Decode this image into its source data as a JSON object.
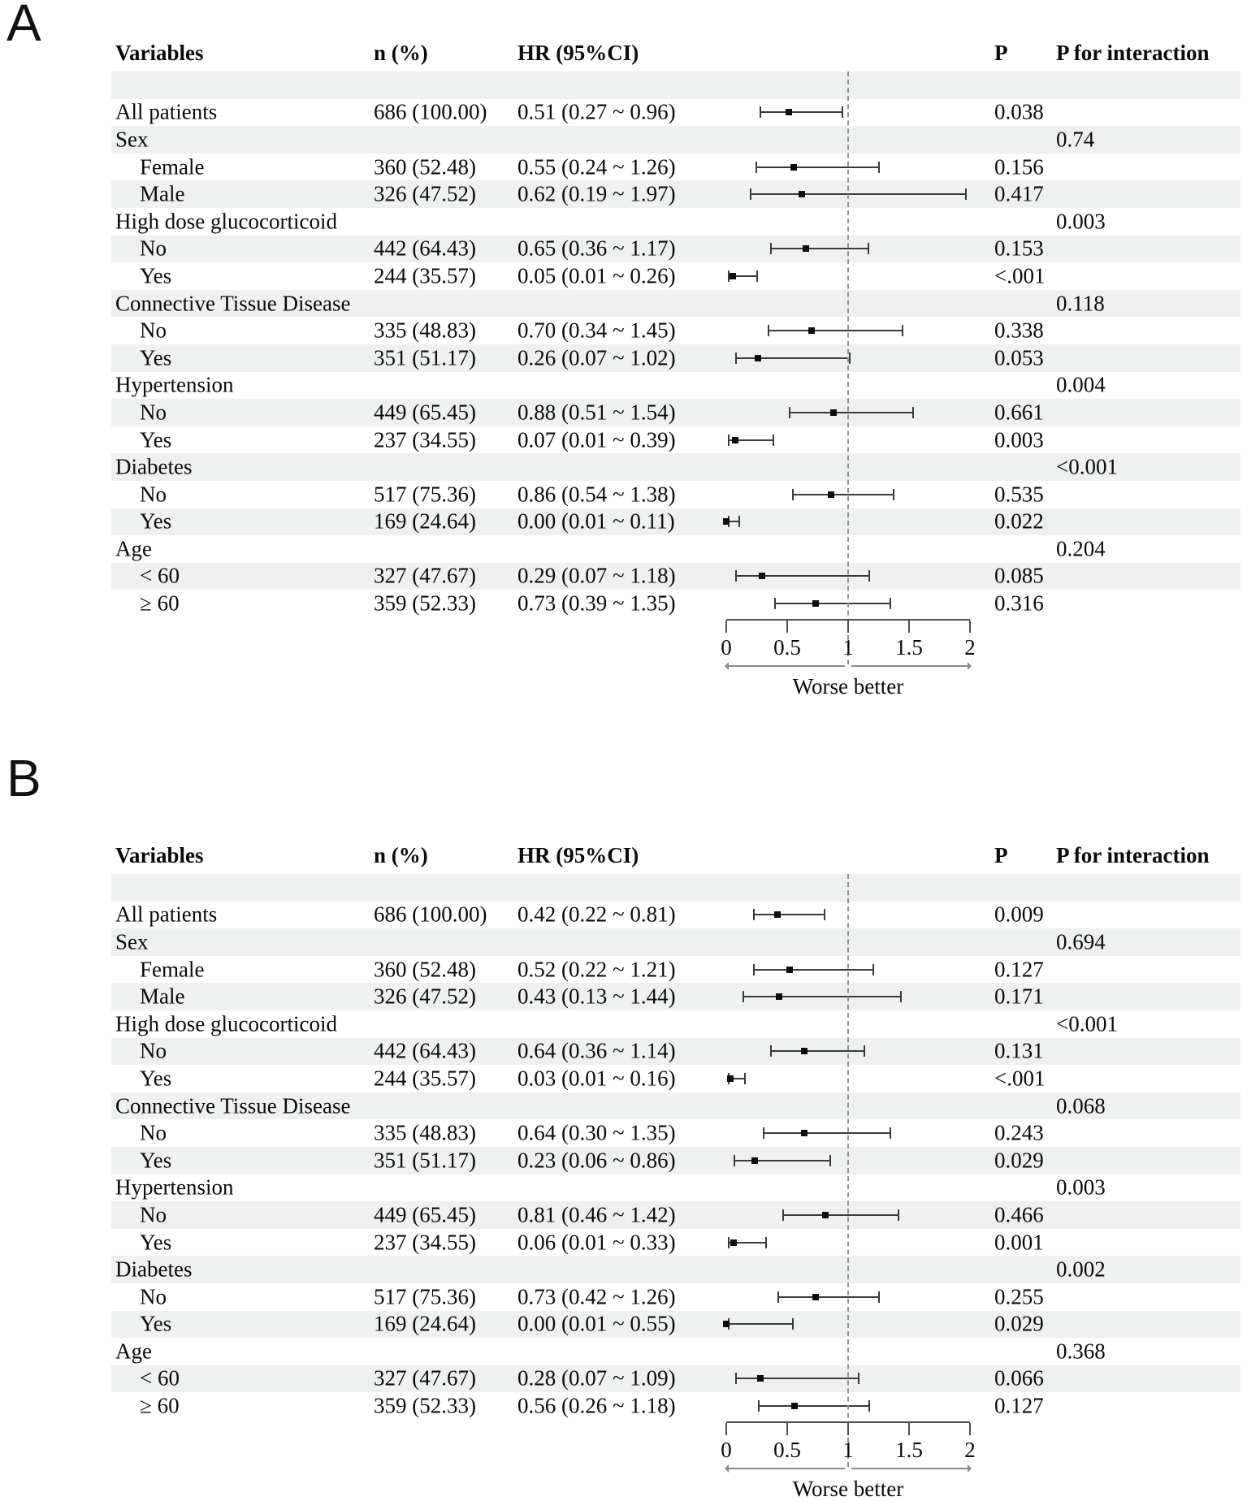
{
  "colors": {
    "stripe": "#eef1f0",
    "text": "#0a0a0a",
    "marker": "#0d0d0d",
    "ci_line": "#3a3a3a",
    "reference_dash": "#8f8f8f",
    "axis": "#4d4d4d"
  },
  "chart_data": [
    {
      "type": "forest",
      "panel": "A",
      "columns": {
        "variables": "Variables",
        "n": "n (%)",
        "hr": "HR (95%CI)",
        "p": "P",
        "p_interaction": "P for interaction"
      },
      "axis": {
        "min": 0,
        "max": 2,
        "ticks": [
          0,
          0.5,
          1,
          1.5,
          2
        ],
        "tick_labels": [
          "0",
          "0.5",
          "1",
          "1.5",
          "2"
        ],
        "reference_line": 1,
        "direction_label": "Worse better"
      },
      "rows": [
        {
          "kind": "spacer"
        },
        {
          "kind": "data",
          "label": "All patients",
          "indent": 0,
          "n": "686 (100.00)",
          "hr_text": "0.51 (0.27 ~ 0.96)",
          "hr": 0.51,
          "ci": [
            0.27,
            0.96
          ],
          "p": "0.038"
        },
        {
          "kind": "group",
          "label": "Sex",
          "p_interaction": "0.74"
        },
        {
          "kind": "data",
          "label": "Female",
          "indent": 1,
          "n": "360 (52.48)",
          "hr_text": "0.55 (0.24 ~ 1.26)",
          "hr": 0.55,
          "ci": [
            0.24,
            1.26
          ],
          "p": "0.156"
        },
        {
          "kind": "data",
          "label": "Male",
          "indent": 1,
          "n": "326 (47.52)",
          "hr_text": "0.62 (0.19 ~ 1.97)",
          "hr": 0.62,
          "ci": [
            0.19,
            1.97
          ],
          "p": "0.417"
        },
        {
          "kind": "group",
          "label": "High dose glucocorticoid",
          "p_interaction": "0.003"
        },
        {
          "kind": "data",
          "label": "No",
          "indent": 1,
          "n": "442 (64.43)",
          "hr_text": "0.65 (0.36 ~ 1.17)",
          "hr": 0.65,
          "ci": [
            0.36,
            1.17
          ],
          "p": "0.153"
        },
        {
          "kind": "data",
          "label": "Yes",
          "indent": 1,
          "n": "244 (35.57)",
          "hr_text": "0.05 (0.01 ~ 0.26)",
          "hr": 0.05,
          "ci": [
            0.01,
            0.26
          ],
          "p": "<.001"
        },
        {
          "kind": "group",
          "label": "Connective Tissue Disease",
          "p_interaction": "0.118"
        },
        {
          "kind": "data",
          "label": "No",
          "indent": 1,
          "n": "335 (48.83)",
          "hr_text": "0.70 (0.34 ~ 1.45)",
          "hr": 0.7,
          "ci": [
            0.34,
            1.45
          ],
          "p": "0.338"
        },
        {
          "kind": "data",
          "label": "Yes",
          "indent": 1,
          "n": "351 (51.17)",
          "hr_text": "0.26 (0.07 ~ 1.02)",
          "hr": 0.26,
          "ci": [
            0.07,
            1.02
          ],
          "p": "0.053"
        },
        {
          "kind": "group",
          "label": "Hypertension",
          "p_interaction": "0.004"
        },
        {
          "kind": "data",
          "label": "No",
          "indent": 1,
          "n": "449 (65.45)",
          "hr_text": "0.88 (0.51 ~ 1.54)",
          "hr": 0.88,
          "ci": [
            0.51,
            1.54
          ],
          "p": "0.661"
        },
        {
          "kind": "data",
          "label": "Yes",
          "indent": 1,
          "n": "237 (34.55)",
          "hr_text": "0.07 (0.01 ~ 0.39)",
          "hr": 0.07,
          "ci": [
            0.01,
            0.39
          ],
          "p": "0.003"
        },
        {
          "kind": "group",
          "label": "Diabetes",
          "p_interaction": "<0.001"
        },
        {
          "kind": "data",
          "label": "No",
          "indent": 1,
          "n": "517 (75.36)",
          "hr_text": "0.86 (0.54 ~ 1.38)",
          "hr": 0.86,
          "ci": [
            0.54,
            1.38
          ],
          "p": "0.535"
        },
        {
          "kind": "data",
          "label": "Yes",
          "indent": 1,
          "n": "169 (24.64)",
          "hr_text": "0.00 (0.01 ~ 0.11)",
          "hr": 0.0,
          "ci": [
            0.01,
            0.11
          ],
          "p": "0.022"
        },
        {
          "kind": "group",
          "label": "Age",
          "p_interaction": "0.204"
        },
        {
          "kind": "data",
          "label": "< 60",
          "indent": 1,
          "n": "327 (47.67)",
          "hr_text": "0.29 (0.07 ~ 1.18)",
          "hr": 0.29,
          "ci": [
            0.07,
            1.18
          ],
          "p": "0.085"
        },
        {
          "kind": "data",
          "label": "≥ 60",
          "indent": 1,
          "n": "359 (52.33)",
          "hr_text": "0.73 (0.39 ~ 1.35)",
          "hr": 0.73,
          "ci": [
            0.39,
            1.35
          ],
          "p": "0.316"
        }
      ]
    },
    {
      "type": "forest",
      "panel": "B",
      "columns": {
        "variables": "Variables",
        "n": "n (%)",
        "hr": "HR (95%CI)",
        "p": "P",
        "p_interaction": "P for interaction"
      },
      "axis": {
        "min": 0,
        "max": 2,
        "ticks": [
          0,
          0.5,
          1,
          1.5,
          2
        ],
        "tick_labels": [
          "0",
          "0.5",
          "1",
          "1.5",
          "2"
        ],
        "reference_line": 1,
        "direction_label": "Worse better"
      },
      "rows": [
        {
          "kind": "spacer"
        },
        {
          "kind": "data",
          "label": "All patients",
          "indent": 0,
          "n": "686 (100.00)",
          "hr_text": "0.42 (0.22 ~ 0.81)",
          "hr": 0.42,
          "ci": [
            0.22,
            0.81
          ],
          "p": "0.009"
        },
        {
          "kind": "group",
          "label": "Sex",
          "p_interaction": "0.694"
        },
        {
          "kind": "data",
          "label": "Female",
          "indent": 1,
          "n": "360 (52.48)",
          "hr_text": "0.52 (0.22 ~ 1.21)",
          "hr": 0.52,
          "ci": [
            0.22,
            1.21
          ],
          "p": "0.127"
        },
        {
          "kind": "data",
          "label": "Male",
          "indent": 1,
          "n": "326 (47.52)",
          "hr_text": "0.43 (0.13 ~ 1.44)",
          "hr": 0.43,
          "ci": [
            0.13,
            1.44
          ],
          "p": "0.171"
        },
        {
          "kind": "group",
          "label": "High dose glucocorticoid",
          "p_interaction": "<0.001"
        },
        {
          "kind": "data",
          "label": "No",
          "indent": 1,
          "n": "442 (64.43)",
          "hr_text": "0.64 (0.36 ~ 1.14)",
          "hr": 0.64,
          "ci": [
            0.36,
            1.14
          ],
          "p": "0.131"
        },
        {
          "kind": "data",
          "label": "Yes",
          "indent": 1,
          "n": "244 (35.57)",
          "hr_text": "0.03 (0.01 ~ 0.16)",
          "hr": 0.03,
          "ci": [
            0.01,
            0.16
          ],
          "p": "<.001"
        },
        {
          "kind": "group",
          "label": "Connective Tissue Disease",
          "p_interaction": "0.068"
        },
        {
          "kind": "data",
          "label": "No",
          "indent": 1,
          "n": "335 (48.83)",
          "hr_text": "0.64 (0.30 ~ 1.35)",
          "hr": 0.64,
          "ci": [
            0.3,
            1.35
          ],
          "p": "0.243"
        },
        {
          "kind": "data",
          "label": "Yes",
          "indent": 1,
          "n": "351 (51.17)",
          "hr_text": "0.23 (0.06 ~ 0.86)",
          "hr": 0.23,
          "ci": [
            0.06,
            0.86
          ],
          "p": "0.029"
        },
        {
          "kind": "group",
          "label": "Hypertension",
          "p_interaction": "0.003"
        },
        {
          "kind": "data",
          "label": "No",
          "indent": 1,
          "n": "449 (65.45)",
          "hr_text": "0.81 (0.46 ~ 1.42)",
          "hr": 0.81,
          "ci": [
            0.46,
            1.42
          ],
          "p": "0.466"
        },
        {
          "kind": "data",
          "label": "Yes",
          "indent": 1,
          "n": "237 (34.55)",
          "hr_text": "0.06 (0.01 ~ 0.33)",
          "hr": 0.06,
          "ci": [
            0.01,
            0.33
          ],
          "p": "0.001"
        },
        {
          "kind": "group",
          "label": "Diabetes",
          "p_interaction": "0.002"
        },
        {
          "kind": "data",
          "label": "No",
          "indent": 1,
          "n": "517 (75.36)",
          "hr_text": "0.73 (0.42 ~ 1.26)",
          "hr": 0.73,
          "ci": [
            0.42,
            1.26
          ],
          "p": "0.255"
        },
        {
          "kind": "data",
          "label": "Yes",
          "indent": 1,
          "n": "169 (24.64)",
          "hr_text": "0.00 (0.01 ~ 0.55)",
          "hr": 0.0,
          "ci": [
            0.01,
            0.55
          ],
          "p": "0.029"
        },
        {
          "kind": "group",
          "label": "Age",
          "p_interaction": "0.368"
        },
        {
          "kind": "data",
          "label": "< 60",
          "indent": 1,
          "n": "327 (47.67)",
          "hr_text": "0.28 (0.07 ~ 1.09)",
          "hr": 0.28,
          "ci": [
            0.07,
            1.09
          ],
          "p": "0.066"
        },
        {
          "kind": "data",
          "label": "≥ 60",
          "indent": 1,
          "n": "359 (52.33)",
          "hr_text": "0.56 (0.26 ~ 1.18)",
          "hr": 0.56,
          "ci": [
            0.26,
            1.18
          ],
          "p": "0.127"
        }
      ]
    }
  ]
}
